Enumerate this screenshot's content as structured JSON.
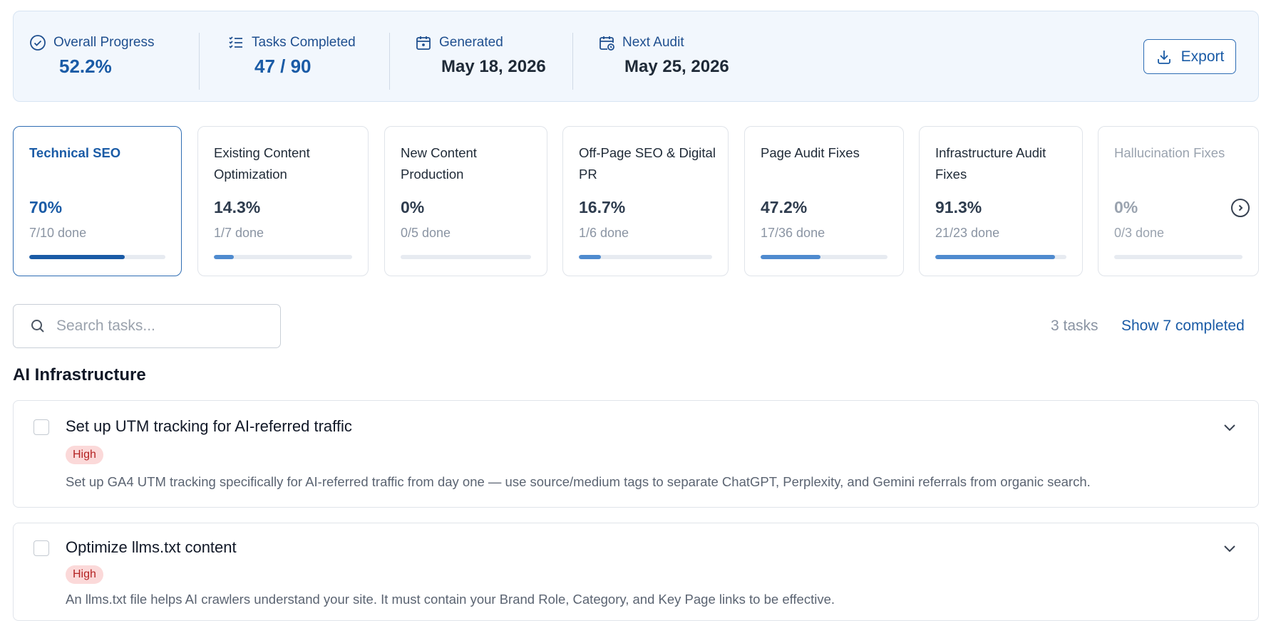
{
  "header": {
    "overall_progress": {
      "label": "Overall Progress",
      "value": "52.2%",
      "icon": "check-circle-icon"
    },
    "tasks_completed": {
      "label": "Tasks Completed",
      "value": "47 / 90",
      "icon": "checklist-icon"
    },
    "generated": {
      "label": "Generated",
      "value": "May 18, 2026",
      "icon": "calendar-icon"
    },
    "next_audit": {
      "label": "Next Audit",
      "value": "May 25, 2026",
      "icon": "calendar-clock-icon"
    },
    "export_label": "Export",
    "export_icon": "download-icon"
  },
  "categories": [
    {
      "title": "Technical SEO",
      "pct": "70%",
      "done": "7/10 done",
      "progress": 0.7,
      "active": true
    },
    {
      "title": "Existing Content Optimization",
      "pct": "14.3%",
      "done": "1/7 done",
      "progress": 0.143
    },
    {
      "title": "New Content Production",
      "pct": "0%",
      "done": "0/5 done",
      "progress": 0
    },
    {
      "title": "Off-Page SEO & Digital PR",
      "pct": "16.7%",
      "done": "1/6 done",
      "progress": 0.167
    },
    {
      "title": "Page Audit Fixes",
      "pct": "47.2%",
      "done": "17/36 done",
      "progress": 0.472
    },
    {
      "title": "Infrastructure Audit Fixes",
      "pct": "91.3%",
      "done": "21/23 done",
      "progress": 0.913
    },
    {
      "title": "Hallucination Fixes",
      "pct": "0%",
      "done": "0/3 done",
      "progress": 0,
      "faded": true
    }
  ],
  "search": {
    "placeholder": "Search tasks...",
    "icon": "search-icon"
  },
  "task_count": "3 tasks",
  "show_completed": "Show 7 completed",
  "section": {
    "title": "AI Infrastructure"
  },
  "tasks": [
    {
      "title": "Set up UTM tracking for AI-referred traffic",
      "priority": "High",
      "description": "Set up GA4 UTM tracking specifically for AI-referred traffic from day one — use source/medium tags to separate ChatGPT, Perplexity, and Gemini referrals from organic search."
    },
    {
      "title": "Optimize llms.txt content",
      "priority": "High",
      "description": "An llms.txt file helps AI crawlers understand your site. It must contain your Brand Role, Category, and Key Page links to be effective."
    }
  ],
  "colors": {
    "accent": "#1a5ba6",
    "bar_fill": "#4f8bcf",
    "badge_bg": "#fbd9d9",
    "badge_text": "#b42323"
  }
}
